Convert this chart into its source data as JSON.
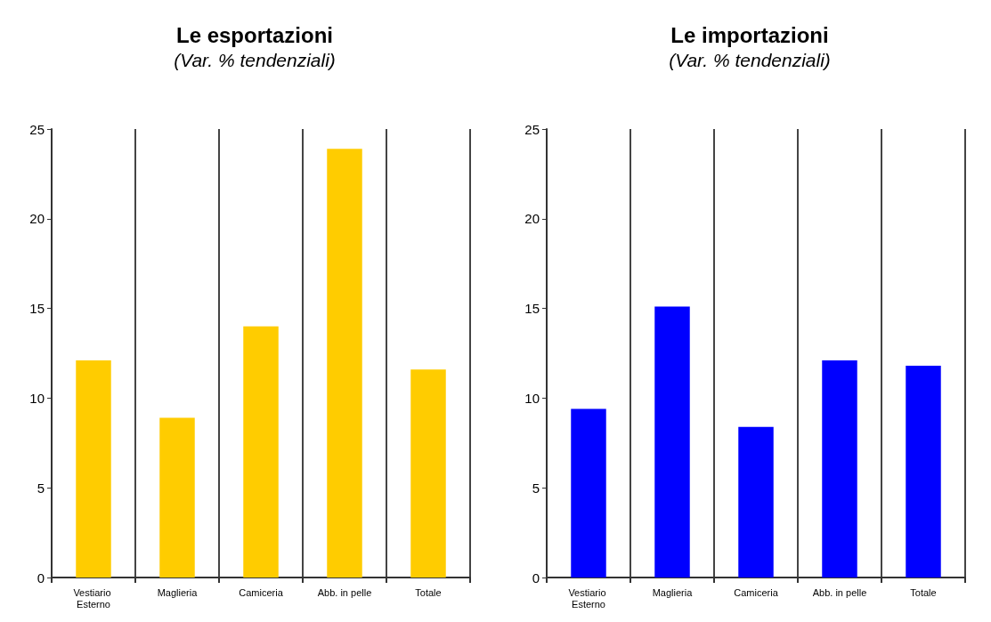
{
  "chart_data": [
    {
      "type": "bar",
      "title": "Le esportazioni",
      "subtitle": "(Var. % tendenziali)",
      "categories": [
        "Vestiario Esterno",
        "Maglieria",
        "Camiceria",
        "Abb. in pelle",
        "Totale"
      ],
      "values": [
        12.1,
        8.9,
        14.0,
        23.9,
        11.6
      ],
      "color": "#ffcc00",
      "ylim": [
        0,
        25
      ],
      "yticks": [
        0,
        5,
        10,
        15,
        20,
        25
      ],
      "grid": "x"
    },
    {
      "type": "bar",
      "title": "Le importazioni",
      "subtitle": "(Var. % tendenziali)",
      "categories": [
        "Vestiario Esterno",
        "Maglieria",
        "Camiceria",
        "Abb. in pelle",
        "Totale"
      ],
      "values": [
        9.4,
        15.1,
        8.4,
        12.1,
        11.8
      ],
      "color": "#0000ff",
      "ylim": [
        0,
        25
      ],
      "yticks": [
        0,
        5,
        10,
        15,
        20,
        25
      ],
      "grid": "x"
    }
  ]
}
